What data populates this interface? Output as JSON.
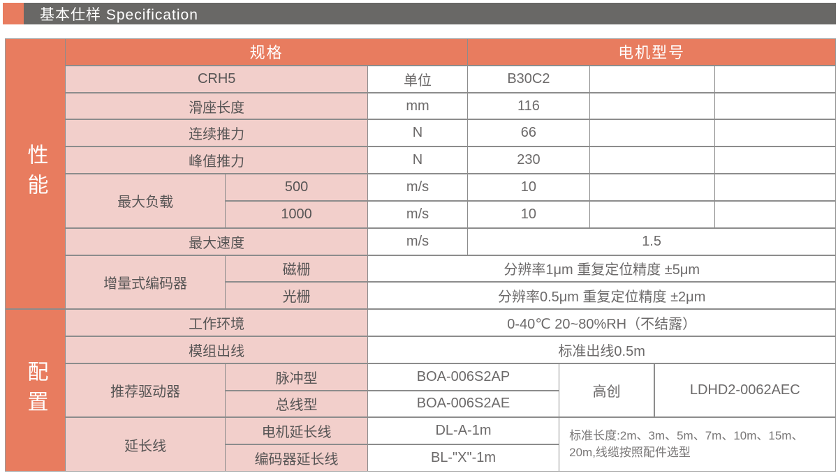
{
  "title_bar": {
    "title": "基本仕样 Specification"
  },
  "colors": {
    "accent_orange": "#E87C5F",
    "label_pink": "#F2CFCB",
    "bar_gray": "#696866",
    "grid_line": "#8c8c8c",
    "text_gray": "#595757"
  },
  "table": {
    "header": {
      "spec": "规格",
      "motor": "电机型号"
    },
    "sections": {
      "performance": "性能",
      "config": "配置"
    },
    "rows": {
      "model": {
        "label": "CRH5",
        "unit": "单位",
        "v1": "B30C2"
      },
      "slider_length": {
        "label": "滑座长度",
        "unit": "mm",
        "v1": "116"
      },
      "cont_force": {
        "label": "连续推力",
        "unit": "N",
        "v1": "66"
      },
      "peak_force": {
        "label": "峰值推力",
        "unit": "N",
        "v1": "230"
      },
      "max_load": {
        "label": "最大负载",
        "sub1": "500",
        "sub2": "1000",
        "unit1": "m/s",
        "unit2": "m/s",
        "v1": "10",
        "v2": "10"
      },
      "max_speed": {
        "label": "最大速度",
        "unit": "m/s",
        "value": "1.5"
      },
      "encoder": {
        "label": "增量式编码器",
        "sub1": "磁栅",
        "sub2": "光栅",
        "value1": "分辨率1μm 重复定位精度 ±5μm",
        "value2": "分辨率0.5μm 重复定位精度 ±2μm"
      },
      "environment": {
        "label": "工作环境",
        "value": "0-40℃ 20~80%RH（不结露）"
      },
      "cable_exit": {
        "label": "模组出线",
        "value": "标准出线0.5m"
      },
      "driver": {
        "label": "推荐驱动器",
        "sub1": "脉冲型",
        "sub2": "总线型",
        "value1": "BOA-006S2AP",
        "value2": "BOA-006S2AE",
        "brand": "高创",
        "model": "LDHD2-0062AEC"
      },
      "extension": {
        "label": "延长线",
        "sub1": "电机延长线",
        "sub2": "编码器延长线",
        "value1": "DL-A-1m",
        "value2": "BL-\"X\"-1m",
        "note": "标准长度:2m、3m、5m、7m、10m、15m、20m,线缆按照配件选型"
      }
    }
  }
}
